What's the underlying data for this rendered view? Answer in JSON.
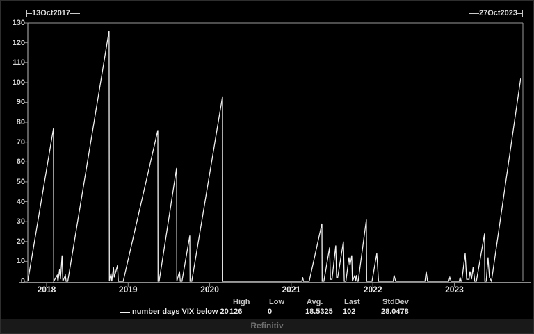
{
  "header": {
    "start_date": "13Oct2017",
    "end_date": "27Oct2023"
  },
  "legend": {
    "series_label": "number days VIX below 20",
    "stats_headers": [
      "High",
      "Low",
      "Avg.",
      "Last",
      "StdDev"
    ],
    "stats_values": [
      "126",
      "0",
      "18.5325",
      "102",
      "28.0478"
    ]
  },
  "footer": {
    "brand": "Refinitiv"
  },
  "colors": {
    "background": "#000000",
    "line": "#f2f2f2",
    "axis": "#8c8c8c",
    "plot_border": "#9a9a9a",
    "text": "#d6d6d6",
    "footer_bg": "#191919"
  },
  "chart_data": {
    "type": "line",
    "title": "number days VIX below 20",
    "xlabel": "",
    "ylabel": "",
    "x_range": [
      "13Oct2017",
      "27Oct2023"
    ],
    "xlim": [
      2017.77,
      2023.84
    ],
    "ylim": [
      0,
      130
    ],
    "yticks": [
      0,
      10,
      20,
      30,
      40,
      50,
      60,
      70,
      80,
      90,
      100,
      110,
      120,
      130
    ],
    "xticks": [
      2018,
      2019,
      2020,
      2021,
      2022,
      2023
    ],
    "grid": false,
    "legend_position": "bottom",
    "stats": {
      "high": 126,
      "low": 0,
      "avg": 18.5325,
      "last": 102,
      "stddev": 28.0478
    },
    "series": [
      {
        "name": "number days VIX below 20",
        "color": "#f2f2f2",
        "points": [
          [
            2017.77,
            0
          ],
          [
            2018.085,
            77
          ],
          [
            2018.088,
            0
          ],
          [
            2018.13,
            3
          ],
          [
            2018.14,
            0
          ],
          [
            2018.16,
            6
          ],
          [
            2018.17,
            1
          ],
          [
            2018.19,
            13
          ],
          [
            2018.2,
            0
          ],
          [
            2018.23,
            3
          ],
          [
            2018.24,
            0
          ],
          [
            2018.26,
            0
          ],
          [
            2018.767,
            126
          ],
          [
            2018.77,
            0
          ],
          [
            2018.79,
            4
          ],
          [
            2018.8,
            0
          ],
          [
            2018.82,
            7
          ],
          [
            2018.83,
            2
          ],
          [
            2018.87,
            8
          ],
          [
            2018.88,
            0
          ],
          [
            2018.94,
            0
          ],
          [
            2019.364,
            76
          ],
          [
            2019.367,
            0
          ],
          [
            2019.38,
            0
          ],
          [
            2019.594,
            57
          ],
          [
            2019.597,
            0
          ],
          [
            2019.63,
            5
          ],
          [
            2019.64,
            0
          ],
          [
            2019.66,
            0
          ],
          [
            2019.756,
            23
          ],
          [
            2019.759,
            0
          ],
          [
            2019.78,
            0
          ],
          [
            2020.157,
            93
          ],
          [
            2020.16,
            0
          ],
          [
            2021.13,
            0
          ],
          [
            2021.14,
            2
          ],
          [
            2021.15,
            0
          ],
          [
            2021.22,
            0
          ],
          [
            2021.376,
            29
          ],
          [
            2021.379,
            0
          ],
          [
            2021.4,
            0
          ],
          [
            2021.47,
            17
          ],
          [
            2021.48,
            1
          ],
          [
            2021.5,
            1
          ],
          [
            2021.546,
            18
          ],
          [
            2021.556,
            2
          ],
          [
            2021.57,
            2
          ],
          [
            2021.64,
            20
          ],
          [
            2021.65,
            0
          ],
          [
            2021.67,
            0
          ],
          [
            2021.708,
            12
          ],
          [
            2021.72,
            8
          ],
          [
            2021.742,
            13
          ],
          [
            2021.75,
            0
          ],
          [
            2021.78,
            3
          ],
          [
            2021.79,
            0
          ],
          [
            2021.8,
            3
          ],
          [
            2021.81,
            0
          ],
          [
            2021.82,
            0
          ],
          [
            2021.921,
            31
          ],
          [
            2021.924,
            0
          ],
          [
            2021.99,
            0
          ],
          [
            2022.049,
            14
          ],
          [
            2022.07,
            0
          ],
          [
            2022.25,
            0
          ],
          [
            2022.26,
            3
          ],
          [
            2022.28,
            0
          ],
          [
            2022.64,
            0
          ],
          [
            2022.654,
            5
          ],
          [
            2022.67,
            0
          ],
          [
            2022.93,
            0
          ],
          [
            2022.944,
            2
          ],
          [
            2022.96,
            0
          ],
          [
            2023.06,
            0
          ],
          [
            2023.07,
            2
          ],
          [
            2023.08,
            0
          ],
          [
            2023.09,
            0
          ],
          [
            2023.132,
            14
          ],
          [
            2023.15,
            1
          ],
          [
            2023.18,
            1
          ],
          [
            2023.191,
            5
          ],
          [
            2023.21,
            1
          ],
          [
            2023.23,
            7
          ],
          [
            2023.25,
            0
          ],
          [
            2023.27,
            0
          ],
          [
            2023.37,
            24
          ],
          [
            2023.373,
            0
          ],
          [
            2023.39,
            0
          ],
          [
            2023.413,
            12
          ],
          [
            2023.43,
            2
          ],
          [
            2023.455,
            0
          ],
          [
            2023.813,
            102
          ]
        ]
      }
    ]
  }
}
